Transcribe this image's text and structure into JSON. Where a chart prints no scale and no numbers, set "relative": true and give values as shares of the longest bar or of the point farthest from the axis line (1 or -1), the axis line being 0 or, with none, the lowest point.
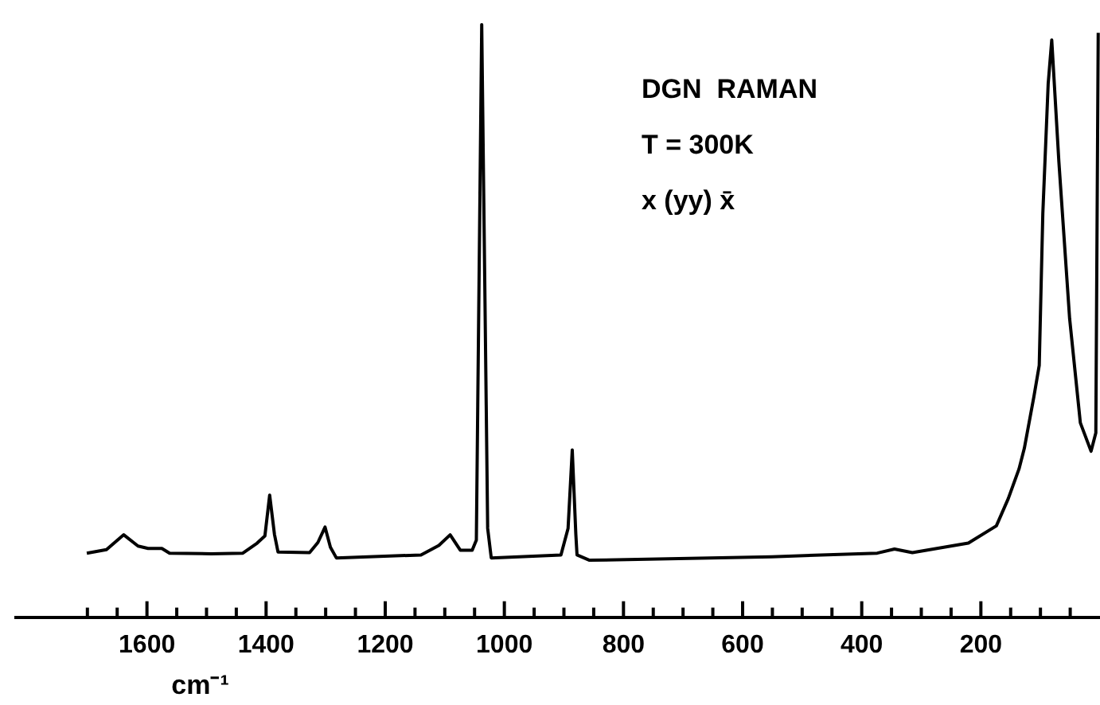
{
  "chart_data": {
    "type": "line",
    "relative": true,
    "xlabel": "cm⁻¹",
    "annotations": [
      "DGN  RAMAN",
      "T = 300K",
      "x (yy) x̄"
    ],
    "x": [
      1701,
      1668,
      1639,
      1615,
      1598,
      1575,
      1562,
      1492,
      1439,
      1415,
      1402,
      1394,
      1386,
      1380,
      1327,
      1313,
      1301,
      1292,
      1282,
      1140,
      1110,
      1091,
      1074,
      1054,
      1047,
      1038,
      1028,
      1022,
      905,
      893,
      886,
      880,
      878,
      857,
      551,
      374,
      345,
      315,
      221,
      174,
      154,
      136,
      127,
      111,
      102,
      96,
      87,
      81,
      69,
      51,
      33,
      15,
      7,
      3
    ],
    "series": [
      {
        "color": "#000000",
        "values": [
          0.108,
          0.114,
          0.139,
          0.12,
          0.116,
          0.116,
          0.108,
          0.107,
          0.108,
          0.125,
          0.137,
          0.206,
          0.14,
          0.11,
          0.109,
          0.126,
          0.152,
          0.118,
          0.1,
          0.105,
          0.121,
          0.139,
          0.113,
          0.113,
          0.13,
          1.0,
          0.15,
          0.1,
          0.105,
          0.15,
          0.282,
          0.14,
          0.105,
          0.096,
          0.102,
          0.108,
          0.115,
          0.109,
          0.125,
          0.154,
          0.2,
          0.25,
          0.285,
          0.372,
          0.425,
          0.681,
          0.9,
          0.974,
          0.768,
          0.504,
          0.328,
          0.28,
          0.311,
          0.986
        ]
      }
    ],
    "xlim": [
      1820,
      0
    ],
    "xticks": [
      {
        "value": 1700,
        "label": null
      },
      {
        "value": 1650,
        "label": null
      },
      1600,
      {
        "value": 1550,
        "label": null
      },
      {
        "value": 1500,
        "label": null
      },
      {
        "value": 1450,
        "label": null
      },
      1400,
      {
        "value": 1350,
        "label": null
      },
      {
        "value": 1300,
        "label": null
      },
      {
        "value": 1250,
        "label": null
      },
      1200,
      {
        "value": 1150,
        "label": null
      },
      {
        "value": 1100,
        "label": null
      },
      {
        "value": 1050,
        "label": null
      },
      1000,
      {
        "value": 950,
        "label": null
      },
      {
        "value": 900,
        "label": null
      },
      {
        "value": 850,
        "label": null
      },
      800,
      {
        "value": 750,
        "label": null
      },
      {
        "value": 700,
        "label": null
      },
      {
        "value": 650,
        "label": null
      },
      600,
      {
        "value": 550,
        "label": null
      },
      {
        "value": 500,
        "label": null
      },
      {
        "value": 450,
        "label": null
      },
      400,
      {
        "value": 350,
        "label": null
      },
      {
        "value": 300,
        "label": null
      },
      {
        "value": 250,
        "label": null
      },
      200,
      {
        "value": 150,
        "label": null
      },
      {
        "value": 100,
        "label": null
      },
      {
        "value": 50,
        "label": null
      }
    ],
    "tick_labels": "x"
  }
}
